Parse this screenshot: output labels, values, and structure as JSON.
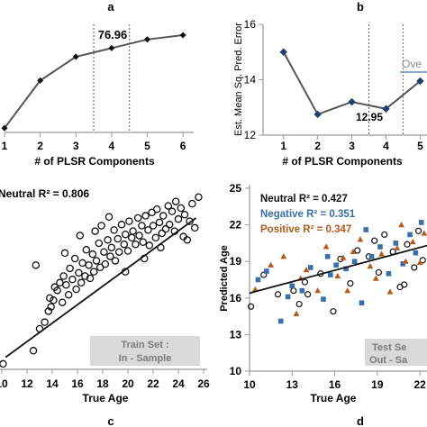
{
  "chart_data": [
    {
      "type": "line",
      "panel_label": "a",
      "x": [
        1,
        2,
        3,
        4,
        5,
        6
      ],
      "xticks": [
        "1",
        "2",
        "3",
        "4",
        "5",
        "6"
      ],
      "xlabel": "# of PLSR Components",
      "ylabel": "",
      "series": [
        {
          "values": [
            40,
            62,
            73,
            77,
            81,
            83
          ]
        }
      ],
      "xlim": [
        1,
        6.3
      ],
      "ylim": [
        38,
        88
      ],
      "annotation": "76.96",
      "vlines": [
        3.5,
        4.5
      ],
      "colors": {
        "line": "#555555",
        "marker": "#111111"
      }
    },
    {
      "type": "line",
      "panel_label": "b",
      "x": [
        1,
        2,
        3,
        4,
        5
      ],
      "xticks": [
        "1",
        "2",
        "3",
        "4",
        "5"
      ],
      "yticks": [
        "12",
        "14",
        "16"
      ],
      "xlabel": "# of PLSR Components",
      "ylabel": "Est. Mean Sq. Pred. Error",
      "series": [
        {
          "values": [
            15.0,
            12.75,
            13.2,
            12.95,
            13.95
          ]
        }
      ],
      "xlim": [
        0.4,
        5.2
      ],
      "ylim": [
        12,
        16
      ],
      "annotation": "12.95",
      "legend_partial": "Ove",
      "vlines": [
        3.5,
        4.5
      ],
      "colors": {
        "line": "#555555",
        "marker": "#1f3f6e",
        "legend_line": "#5b8fc7"
      }
    },
    {
      "type": "scatter",
      "panel_label": "c",
      "xticks": [
        "10",
        "12",
        "14",
        "16",
        "18",
        "20",
        "22",
        "24",
        "26"
      ],
      "xlabel": "True Age",
      "xlim": [
        9.5,
        26.5
      ],
      "ylim": [
        9.5,
        26.5
      ],
      "annotation": "Neutral R² = 0.806",
      "box_lines": [
        "Train Set :",
        "In - Sample"
      ],
      "fit_line": [
        [
          10.3,
          10.6
        ],
        [
          25.4,
          23.3
        ]
      ],
      "series": [
        {
          "name": "Neutral",
          "points": [
            [
              10.1,
              10.0
            ],
            [
              12.5,
              11.2
            ],
            [
              12.7,
              19.0
            ],
            [
              13.0,
              13.2
            ],
            [
              13.4,
              13.8
            ],
            [
              13.7,
              14.8
            ],
            [
              13.8,
              16.0
            ],
            [
              13.9,
              15.2
            ],
            [
              14.1,
              15.8
            ],
            [
              14.2,
              17.0
            ],
            [
              14.4,
              16.7
            ],
            [
              14.6,
              17.4
            ],
            [
              14.8,
              15.6
            ],
            [
              14.9,
              18.0
            ],
            [
              15.1,
              17.2
            ],
            [
              15.3,
              16.3
            ],
            [
              15.4,
              18.7
            ],
            [
              15.6,
              17.7
            ],
            [
              15.8,
              19.6
            ],
            [
              15.9,
              16.8
            ],
            [
              16.1,
              18.3
            ],
            [
              16.3,
              17.4
            ],
            [
              16.4,
              19.2
            ],
            [
              16.6,
              18.0
            ],
            [
              16.7,
              20.4
            ],
            [
              16.9,
              19.0
            ],
            [
              17.0,
              17.8
            ],
            [
              17.2,
              20.0
            ],
            [
              17.3,
              18.4
            ],
            [
              17.5,
              19.4
            ],
            [
              17.7,
              21.0
            ],
            [
              17.8,
              18.8
            ],
            [
              17.9,
              22.6
            ],
            [
              18.1,
              20.2
            ],
            [
              18.2,
              19.1
            ],
            [
              18.4,
              21.3
            ],
            [
              18.6,
              19.8
            ],
            [
              18.7,
              20.6
            ],
            [
              18.9,
              22.2
            ],
            [
              19.0,
              19.4
            ],
            [
              19.2,
              21.4
            ],
            [
              19.3,
              20.2
            ],
            [
              19.5,
              22.7
            ],
            [
              19.7,
              20.9
            ],
            [
              19.8,
              21.8
            ],
            [
              20.0,
              20.3
            ],
            [
              20.1,
              23.0
            ],
            [
              20.3,
              21.5
            ],
            [
              20.4,
              22.1
            ],
            [
              20.6,
              20.9
            ],
            [
              20.8,
              23.3
            ],
            [
              20.9,
              21.7
            ],
            [
              21.1,
              22.6
            ],
            [
              21.2,
              21.1
            ],
            [
              21.4,
              23.5
            ],
            [
              21.6,
              22.2
            ],
            [
              21.7,
              20.8
            ],
            [
              21.9,
              23.8
            ],
            [
              22.0,
              22.6
            ],
            [
              22.2,
              21.5
            ],
            [
              22.3,
              24.1
            ],
            [
              22.5,
              22.9
            ],
            [
              22.7,
              21.9
            ],
            [
              22.8,
              23.5
            ],
            [
              23.0,
              22.3
            ],
            [
              23.2,
              24.4
            ],
            [
              23.3,
              22.7
            ],
            [
              23.5,
              23.9
            ],
            [
              23.7,
              22.1
            ],
            [
              23.8,
              24.8
            ],
            [
              24.0,
              23.2
            ],
            [
              24.2,
              24.2
            ],
            [
              24.4,
              21.6
            ],
            [
              24.5,
              23.6
            ],
            [
              24.7,
              21.3
            ],
            [
              24.9,
              23.0
            ],
            [
              25.1,
              24.6
            ],
            [
              25.3,
              22.4
            ],
            [
              25.6,
              25.2
            ],
            [
              16.2,
              21.7
            ],
            [
              18.5,
              23.4
            ],
            [
              21.3,
              19.6
            ],
            [
              19.8,
              18.4
            ],
            [
              15.0,
              20.1
            ],
            [
              22.6,
              20.6
            ],
            [
              17.4,
              22.1
            ]
          ]
        }
      ],
      "colors": {
        "marker": "#111111",
        "fit": "#111111",
        "box": "#d9d9d9",
        "box_text": "#7a7a7a"
      }
    },
    {
      "type": "scatter",
      "panel_label": "d",
      "xticks": [
        "10",
        "13",
        "16",
        "19",
        "22"
      ],
      "yticks": [
        "10",
        "13",
        "16",
        "19",
        "22",
        "25"
      ],
      "xlabel": "True Age",
      "ylabel": "Predicted Age",
      "xlim": [
        10,
        22.5
      ],
      "ylim": [
        10,
        25
      ],
      "legend": [
        {
          "name": "Neutral",
          "label": "Neutral R² = 0.427",
          "color": "#111111"
        },
        {
          "name": "Negative",
          "label": "Negative R² = 0.351",
          "color": "#3a6ea8"
        },
        {
          "name": "Positive",
          "label": "Positive R² = 0.347",
          "color": "#b35a1f"
        }
      ],
      "box_lines": [
        "Test Se",
        "Out - Sa"
      ],
      "fit_line": [
        [
          10,
          16.4
        ],
        [
          22.5,
          20.3
        ]
      ],
      "series": [
        {
          "name": "Neutral",
          "points": [
            [
              10.1,
              15.3
            ],
            [
              11.0,
              17.9
            ],
            [
              12.0,
              16.3
            ],
            [
              13.1,
              16.6
            ],
            [
              13.5,
              15.5
            ],
            [
              14.1,
              16.3
            ],
            [
              15.0,
              18.0
            ],
            [
              15.9,
              14.9
            ],
            [
              16.4,
              19.2
            ],
            [
              17.1,
              17.2
            ],
            [
              17.6,
              19.9
            ],
            [
              18.4,
              19.4
            ],
            [
              18.8,
              20.7
            ],
            [
              19.1,
              18.1
            ],
            [
              19.5,
              21.2
            ],
            [
              20.1,
              19.8
            ],
            [
              20.6,
              16.9
            ],
            [
              21.1,
              20.4
            ],
            [
              21.6,
              18.5
            ],
            [
              21.9,
              21.5
            ],
            [
              22.2,
              19.1
            ],
            [
              13.9,
              17.3
            ],
            [
              20.9,
              17.1
            ]
          ]
        },
        {
          "name": "Negative",
          "points": [
            [
              10.6,
              17.5
            ],
            [
              11.2,
              18.2
            ],
            [
              12.2,
              14.1
            ],
            [
              13.0,
              17.0
            ],
            [
              13.7,
              16.6
            ],
            [
              14.3,
              18.5
            ],
            [
              15.2,
              15.9
            ],
            [
              15.7,
              17.9
            ],
            [
              16.1,
              18.7
            ],
            [
              16.8,
              18.4
            ],
            [
              17.4,
              19.0
            ],
            [
              17.9,
              15.6
            ],
            [
              18.6,
              19.4
            ],
            [
              19.2,
              20.2
            ],
            [
              19.8,
              18.0
            ],
            [
              20.3,
              20.5
            ],
            [
              20.8,
              18.8
            ],
            [
              21.3,
              21.2
            ],
            [
              21.7,
              19.7
            ],
            [
              22.1,
              22.2
            ],
            [
              12.7,
              16.1
            ],
            [
              18.2,
              21.6
            ],
            [
              15.5,
              19.4
            ]
          ]
        },
        {
          "name": "Positive",
          "points": [
            [
              10.4,
              16.7
            ],
            [
              11.5,
              18.7
            ],
            [
              12.4,
              19.4
            ],
            [
              13.3,
              14.7
            ],
            [
              14.0,
              18.3
            ],
            [
              14.8,
              16.6
            ],
            [
              15.4,
              20.2
            ],
            [
              16.2,
              17.8
            ],
            [
              16.9,
              16.6
            ],
            [
              17.3,
              19.8
            ],
            [
              17.8,
              20.8
            ],
            [
              18.5,
              18.6
            ],
            [
              18.9,
              17.6
            ],
            [
              19.3,
              19.6
            ],
            [
              19.9,
              16.5
            ],
            [
              20.4,
              20.1
            ],
            [
              21.0,
              19.0
            ],
            [
              21.5,
              20.6
            ],
            [
              22.0,
              18.9
            ],
            [
              22.3,
              21.3
            ],
            [
              13.6,
              17.6
            ],
            [
              16.6,
              19.3
            ],
            [
              20.7,
              22.0
            ]
          ]
        }
      ],
      "colors": {
        "fit": "#111111",
        "box": "#d9d9d9",
        "box_text": "#7a7a7a"
      }
    }
  ]
}
